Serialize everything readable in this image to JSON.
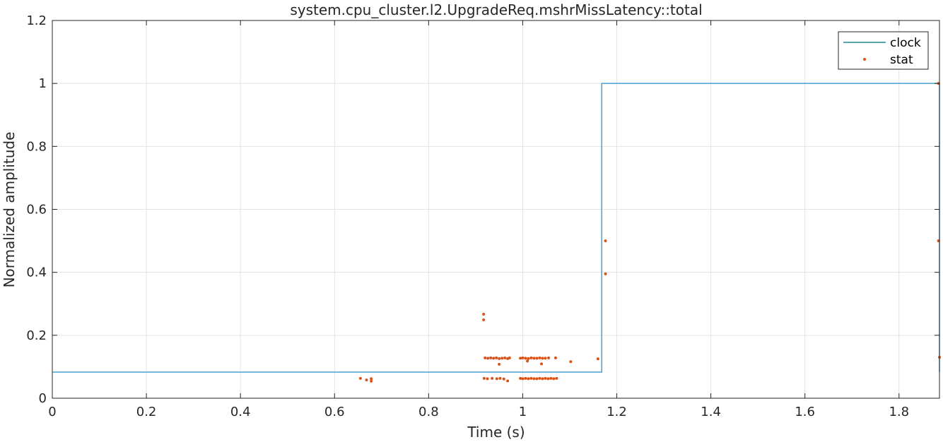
{
  "chart_data": {
    "type": "line",
    "title": "system.cpu_cluster.l2.UpgradeReq.mshrMissLatency::total",
    "xlabel": "Time (s)",
    "ylabel": "Normalized amplitude",
    "xlim": [
      0,
      1.886
    ],
    "ylim": [
      0,
      1.2
    ],
    "xticks": [
      0,
      0.2,
      0.4,
      0.6,
      0.8,
      1,
      1.2,
      1.4,
      1.6,
      1.8
    ],
    "xtick_labels": [
      "0",
      "0.2",
      "0.4",
      "0.6",
      "0.8",
      "1",
      "1.2",
      "1.4",
      "1.6",
      "1.8"
    ],
    "yticks": [
      0,
      0.2,
      0.4,
      0.6,
      0.8,
      1,
      1.2
    ],
    "ytick_labels": [
      "0",
      "0.2",
      "0.4",
      "0.6",
      "0.8",
      "1",
      "1.2"
    ],
    "grid": true,
    "legend_position": "top-right",
    "colors": {
      "clock": "#4a9fd1",
      "stat": "#d95319",
      "legend_clock_line": "#1f8a8a",
      "grid": "#e3e3e3",
      "axis": "#262626"
    },
    "series": [
      {
        "name": "clock",
        "kind": "step-line",
        "x": [
          0,
          1.168,
          1.168,
          1.886,
          1.886
        ],
        "y": [
          0.083,
          0.083,
          1.0,
          1.0,
          0.083
        ]
      },
      {
        "name": "stat",
        "kind": "scatter",
        "points": [
          [
            0.655,
            0.063
          ],
          [
            0.668,
            0.058
          ],
          [
            0.678,
            0.054
          ],
          [
            0.678,
            0.062
          ],
          [
            0.917,
            0.267
          ],
          [
            0.917,
            0.249
          ],
          [
            0.918,
            0.063
          ],
          [
            0.925,
            0.062
          ],
          [
            0.935,
            0.063
          ],
          [
            0.945,
            0.062
          ],
          [
            0.952,
            0.063
          ],
          [
            0.96,
            0.061
          ],
          [
            0.968,
            0.055
          ],
          [
            0.92,
            0.128
          ],
          [
            0.926,
            0.127
          ],
          [
            0.932,
            0.128
          ],
          [
            0.938,
            0.127
          ],
          [
            0.944,
            0.128
          ],
          [
            0.95,
            0.126
          ],
          [
            0.956,
            0.127
          ],
          [
            0.962,
            0.128
          ],
          [
            0.968,
            0.126
          ],
          [
            0.972,
            0.128
          ],
          [
            0.95,
            0.108
          ],
          [
            0.995,
            0.127
          ],
          [
            1.0,
            0.128
          ],
          [
            1.006,
            0.127
          ],
          [
            1.012,
            0.126
          ],
          [
            1.018,
            0.128
          ],
          [
            1.024,
            0.127
          ],
          [
            1.03,
            0.127
          ],
          [
            1.036,
            0.128
          ],
          [
            1.042,
            0.127
          ],
          [
            1.048,
            0.127
          ],
          [
            1.055,
            0.128
          ],
          [
            1.07,
            0.128
          ],
          [
            1.04,
            0.109
          ],
          [
            1.01,
            0.118
          ],
          [
            0.995,
            0.063
          ],
          [
            1.0,
            0.062
          ],
          [
            1.006,
            0.063
          ],
          [
            1.012,
            0.062
          ],
          [
            1.018,
            0.063
          ],
          [
            1.024,
            0.062
          ],
          [
            1.03,
            0.062
          ],
          [
            1.036,
            0.063
          ],
          [
            1.042,
            0.062
          ],
          [
            1.048,
            0.063
          ],
          [
            1.054,
            0.062
          ],
          [
            1.06,
            0.063
          ],
          [
            1.066,
            0.062
          ],
          [
            1.072,
            0.063
          ],
          [
            1.102,
            0.116
          ],
          [
            1.16,
            0.125
          ],
          [
            1.176,
            0.5
          ],
          [
            1.176,
            0.395
          ],
          [
            1.884,
            1.0
          ],
          [
            1.884,
            0.5
          ],
          [
            1.886,
            0.13
          ]
        ]
      }
    ]
  }
}
